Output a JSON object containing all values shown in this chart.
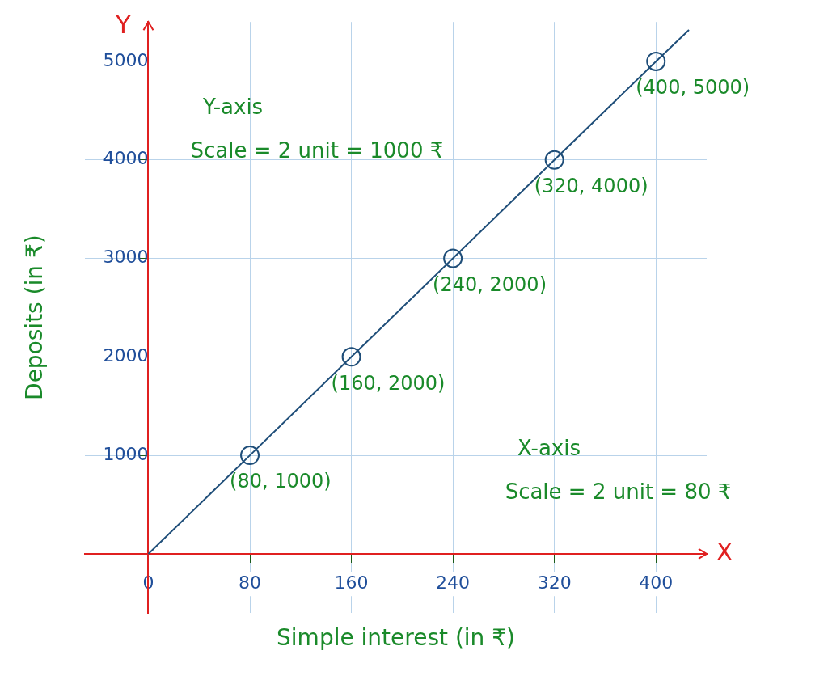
{
  "chart_data": {
    "type": "line",
    "xlabel": "Simple interest (in ₹)",
    "ylabel": "Deposits (in ₹)",
    "xlim": [
      -50,
      440
    ],
    "ylim": [
      -600,
      5400
    ],
    "xticks": [
      {
        "value": 0,
        "label": "0"
      },
      80,
      160,
      240,
      320,
      400
    ],
    "yticks": [
      1000,
      2000,
      3000,
      4000,
      5000
    ],
    "grid": true,
    "legend": false,
    "line_style": "solid",
    "series": [
      {
        "color": "#1f4e79",
        "marker": "none",
        "x": [
          0,
          80,
          160,
          240,
          320,
          400,
          426
        ],
        "values": [
          0,
          1000,
          2000,
          3000,
          4000,
          5000,
          5320
        ]
      },
      {
        "type": "scatter",
        "color": "#1f4e79",
        "marker": "circle",
        "x": [
          80,
          160,
          240,
          320,
          400
        ],
        "values": [
          1000,
          2000,
          3000,
          4000,
          5000
        ],
        "value_labels": [
          "(80, 1000)",
          "(160, 2000)",
          "(240, 2000)",
          "(320, 4000)",
          "(400, 5000)"
        ]
      }
    ],
    "annotations": [
      "Y-axis",
      "Scale = 2 unit = 1000 ₹",
      "X-axis",
      "Scale = 2 unit = 80 ₹",
      "X",
      "Y"
    ]
  }
}
